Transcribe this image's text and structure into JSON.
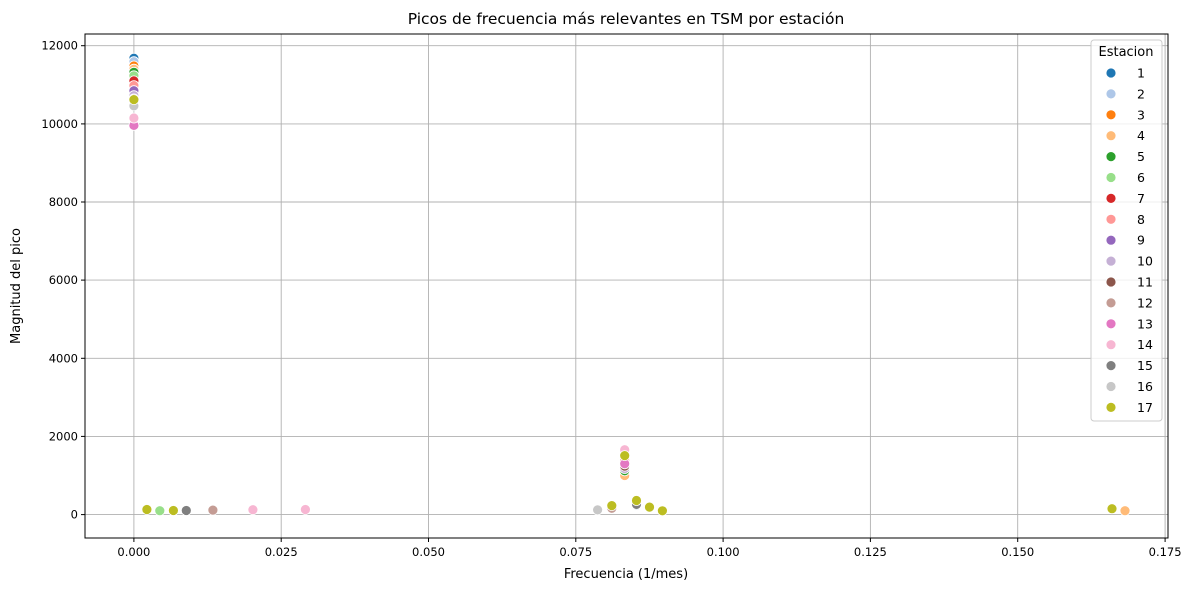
{
  "chart_data": {
    "type": "scatter",
    "title": "Picos de frecuencia más relevantes en TSM por estación",
    "xlabel": "Frecuencia (1/mes)",
    "ylabel": "Magnitud del pico",
    "xlim": [
      -0.0083,
      0.1755
    ],
    "ylim": [
      -600,
      12300
    ],
    "xticks": [
      0.0,
      0.025,
      0.05,
      0.075,
      0.1,
      0.125,
      0.15,
      0.175
    ],
    "xtick_labels": [
      "0.000",
      "0.025",
      "0.050",
      "0.075",
      "0.100",
      "0.125",
      "0.150",
      "0.175"
    ],
    "yticks": [
      0,
      2000,
      4000,
      6000,
      8000,
      10000,
      12000
    ],
    "ytick_labels": [
      "0",
      "2000",
      "4000",
      "6000",
      "8000",
      "10000",
      "12000"
    ],
    "grid": true,
    "legend": {
      "title": "Estacion",
      "position": "top-right"
    },
    "series": [
      {
        "name": "1",
        "color": "#1f77b4",
        "points": [
          [
            0.0,
            11680
          ],
          [
            0.0833,
            1150
          ],
          [
            0.0853,
            240
          ]
        ]
      },
      {
        "name": "2",
        "color": "#aec7e8",
        "points": [
          [
            0.0,
            11590
          ],
          [
            0.0833,
            1050
          ]
        ]
      },
      {
        "name": "3",
        "color": "#ff7f0e",
        "points": [
          [
            0.0,
            11480
          ],
          [
            0.0833,
            1100
          ]
        ]
      },
      {
        "name": "4",
        "color": "#ffbb78",
        "points": [
          [
            0.0,
            11400
          ],
          [
            0.0833,
            1000
          ],
          [
            0.1682,
            100
          ]
        ]
      },
      {
        "name": "5",
        "color": "#2ca02c",
        "points": [
          [
            0.0,
            11320
          ],
          [
            0.0833,
            1120
          ]
        ]
      },
      {
        "name": "6",
        "color": "#98df8a",
        "points": [
          [
            0.0,
            11230
          ],
          [
            0.0044,
            100
          ]
        ]
      },
      {
        "name": "7",
        "color": "#d62728",
        "points": [
          [
            0.0,
            11100
          ],
          [
            0.0833,
            1280
          ]
        ]
      },
      {
        "name": "8",
        "color": "#ff9896",
        "points": [
          [
            0.0,
            10980
          ],
          [
            0.0833,
            1380
          ]
        ]
      },
      {
        "name": "9",
        "color": "#9467bd",
        "points": [
          [
            0.0,
            10850
          ],
          [
            0.0833,
            1210
          ]
        ]
      },
      {
        "name": "10",
        "color": "#c5b0d5",
        "points": [
          [
            0.0,
            10720
          ],
          [
            0.0833,
            1180
          ]
        ]
      },
      {
        "name": "11",
        "color": "#8c564b",
        "points": [
          [
            0.0,
            10640
          ],
          [
            0.0833,
            1240
          ]
        ]
      },
      {
        "name": "12",
        "color": "#c49c94",
        "points": [
          [
            0.0,
            10560
          ],
          [
            0.0134,
            115
          ],
          [
            0.0811,
            160
          ]
        ]
      },
      {
        "name": "13",
        "color": "#e377c2",
        "points": [
          [
            0.0,
            9960
          ],
          [
            0.0833,
            1300
          ]
        ]
      },
      {
        "name": "14",
        "color": "#f7b6d2",
        "points": [
          [
            0.0,
            10150
          ],
          [
            0.0202,
            125
          ],
          [
            0.0291,
            130
          ],
          [
            0.0833,
            1660
          ]
        ]
      },
      {
        "name": "15",
        "color": "#7f7f7f",
        "points": [
          [
            0.0,
            10600
          ],
          [
            0.0089,
            105
          ],
          [
            0.0853,
            260
          ]
        ]
      },
      {
        "name": "16",
        "color": "#c7c7c7",
        "points": [
          [
            0.0,
            10460
          ],
          [
            0.0787,
            120
          ]
        ]
      },
      {
        "name": "17",
        "color": "#bcbd22",
        "points": [
          [
            0.0,
            10620
          ],
          [
            0.0022,
            130
          ],
          [
            0.0067,
            105
          ],
          [
            0.0811,
            230
          ],
          [
            0.0833,
            1510
          ],
          [
            0.0853,
            360
          ],
          [
            0.0875,
            190
          ],
          [
            0.0897,
            95
          ],
          [
            0.166,
            150
          ]
        ]
      }
    ]
  }
}
